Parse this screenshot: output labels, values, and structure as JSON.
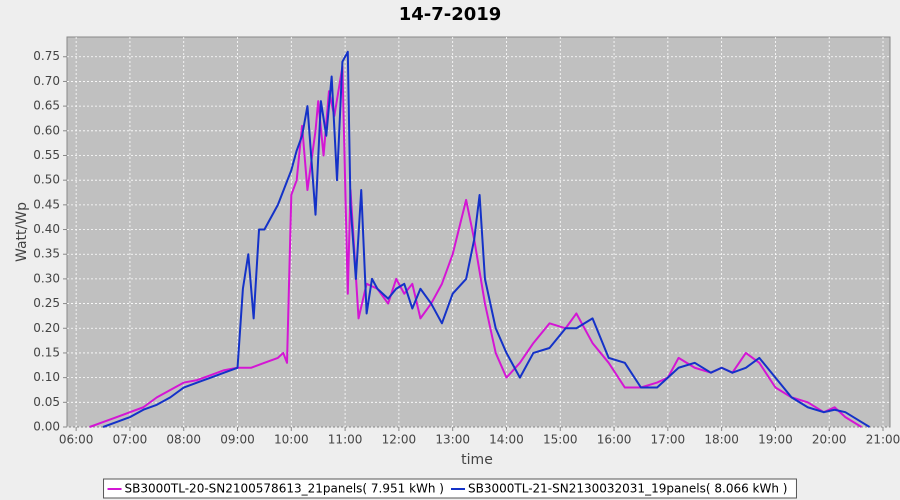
{
  "chart_data": {
    "type": "line",
    "title": "14-7-2019",
    "x_label": "time",
    "y_label": "Watt/Wp",
    "xlim": [
      5.83,
      21.13
    ],
    "ylim": [
      0,
      0.79
    ],
    "grid": true,
    "legend": "bottom",
    "xticks": [
      {
        "value": 6,
        "label": "06:00"
      },
      {
        "value": 7,
        "label": "07:00"
      },
      {
        "value": 8,
        "label": "08:00"
      },
      {
        "value": 9,
        "label": "09:00"
      },
      {
        "value": 10,
        "label": "10:00"
      },
      {
        "value": 11,
        "label": "11:00"
      },
      {
        "value": 12,
        "label": "12:00"
      },
      {
        "value": 13,
        "label": "13:00"
      },
      {
        "value": 14,
        "label": "14:00"
      },
      {
        "value": 15,
        "label": "15:00"
      },
      {
        "value": 16,
        "label": "16:00"
      },
      {
        "value": 17,
        "label": "17:00"
      },
      {
        "value": 18,
        "label": "18:00"
      },
      {
        "value": 19,
        "label": "19:00"
      },
      {
        "value": 20,
        "label": "20:00"
      },
      {
        "value": 21,
        "label": "21:00"
      }
    ],
    "yticks": [
      {
        "value": 0,
        "label": "0.00"
      },
      0.05,
      {
        "value": 0.1,
        "label": "0.10"
      },
      0.15,
      {
        "value": 0.2,
        "label": "0.20"
      },
      0.25,
      {
        "value": 0.3,
        "label": "0.30"
      },
      0.35,
      {
        "value": 0.4,
        "label": "0.40"
      },
      0.45,
      {
        "value": 0.5,
        "label": "0.50"
      },
      0.55,
      {
        "value": 0.6,
        "label": "0.60"
      },
      0.65,
      {
        "value": 0.7,
        "label": "0.70"
      },
      0.75
    ],
    "series": [
      {
        "name": "SB3000TL-20-SN2100578613_21panels( 7.951 kWh )",
        "color": "#d416d4",
        "x": [
          6.25,
          6.5,
          6.75,
          7,
          7.25,
          7.5,
          7.75,
          8,
          8.25,
          8.5,
          8.75,
          9,
          9.25,
          9.5,
          9.75,
          9.85,
          9.92,
          10,
          10.1,
          10.2,
          10.3,
          10.45,
          10.5,
          10.6,
          10.7,
          10.8,
          10.95,
          11.05,
          11.1,
          11.25,
          11.4,
          11.6,
          11.8,
          11.95,
          12.1,
          12.25,
          12.4,
          12.6,
          12.8,
          13,
          13.25,
          13.4,
          13.6,
          13.8,
          14,
          14.25,
          14.5,
          14.8,
          15.1,
          15.3,
          15.6,
          15.9,
          16.2,
          16.5,
          16.8,
          17,
          17.2,
          17.5,
          17.8,
          18,
          18.2,
          18.45,
          18.7,
          19,
          19.3,
          19.6,
          19.9,
          20.1,
          20.3,
          20.6
        ],
        "values": [
          0,
          0.01,
          0.02,
          0.03,
          0.04,
          0.06,
          0.075,
          0.09,
          0.095,
          0.105,
          0.115,
          0.12,
          0.12,
          0.13,
          0.14,
          0.15,
          0.13,
          0.47,
          0.5,
          0.61,
          0.48,
          0.6,
          0.66,
          0.55,
          0.68,
          0.63,
          0.73,
          0.27,
          0.48,
          0.22,
          0.29,
          0.28,
          0.25,
          0.3,
          0.27,
          0.29,
          0.22,
          0.25,
          0.29,
          0.35,
          0.46,
          0.38,
          0.25,
          0.15,
          0.1,
          0.13,
          0.17,
          0.21,
          0.2,
          0.23,
          0.17,
          0.13,
          0.08,
          0.08,
          0.09,
          0.1,
          0.14,
          0.12,
          0.11,
          0.12,
          0.11,
          0.15,
          0.13,
          0.08,
          0.06,
          0.05,
          0.03,
          0.04,
          0.02,
          0
        ]
      },
      {
        "name": "SB3000TL-21-SN2130032031_19panels( 8.066 kWh )",
        "color": "#1432c8",
        "x": [
          6.5,
          6.75,
          7,
          7.25,
          7.5,
          7.75,
          8,
          8.25,
          8.5,
          8.75,
          9,
          9.1,
          9.2,
          9.3,
          9.4,
          9.5,
          9.75,
          10,
          10.1,
          10.2,
          10.3,
          10.45,
          10.55,
          10.65,
          10.75,
          10.85,
          10.95,
          11.05,
          11.1,
          11.2,
          11.3,
          11.4,
          11.5,
          11.6,
          11.8,
          11.95,
          12.1,
          12.25,
          12.4,
          12.6,
          12.8,
          13,
          13.25,
          13.4,
          13.5,
          13.6,
          13.8,
          14,
          14.25,
          14.5,
          14.8,
          15.1,
          15.3,
          15.6,
          15.9,
          16.2,
          16.5,
          16.8,
          17,
          17.2,
          17.5,
          17.8,
          18,
          18.2,
          18.45,
          18.7,
          19,
          19.3,
          19.6,
          19.9,
          20.1,
          20.3,
          20.6,
          20.75
        ],
        "values": [
          0,
          0.01,
          0.02,
          0.035,
          0.045,
          0.06,
          0.08,
          0.09,
          0.1,
          0.11,
          0.12,
          0.28,
          0.35,
          0.22,
          0.4,
          0.4,
          0.45,
          0.52,
          0.56,
          0.59,
          0.65,
          0.43,
          0.66,
          0.59,
          0.71,
          0.5,
          0.74,
          0.76,
          0.45,
          0.3,
          0.48,
          0.23,
          0.3,
          0.28,
          0.26,
          0.28,
          0.29,
          0.24,
          0.28,
          0.25,
          0.21,
          0.27,
          0.3,
          0.38,
          0.47,
          0.3,
          0.2,
          0.15,
          0.1,
          0.15,
          0.16,
          0.2,
          0.2,
          0.22,
          0.14,
          0.13,
          0.08,
          0.08,
          0.1,
          0.12,
          0.13,
          0.11,
          0.12,
          0.11,
          0.12,
          0.14,
          0.1,
          0.06,
          0.04,
          0.03,
          0.035,
          0.03,
          0.01,
          0
        ]
      }
    ]
  }
}
